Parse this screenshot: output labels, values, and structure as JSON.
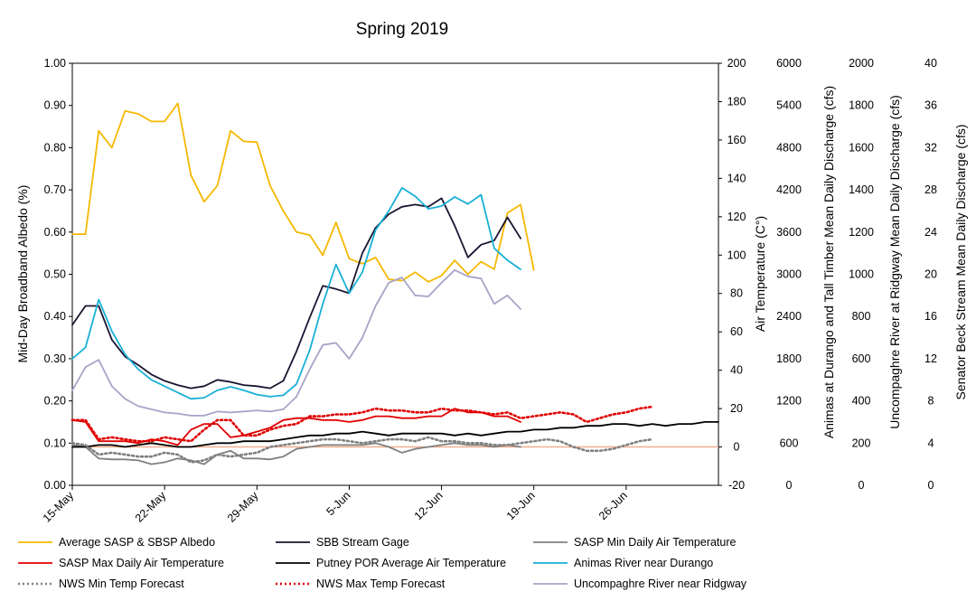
{
  "chart_data": {
    "type": "line",
    "title": "Spring 2019",
    "x_axis": {
      "tick_labels": [
        "15-May",
        "22-May",
        "29-May",
        "5-Jun",
        "12-Jun",
        "19-Jun",
        "26-Jun"
      ],
      "tick_days": [
        0,
        7,
        14,
        21,
        28,
        35,
        42
      ],
      "range_days": [
        0,
        49
      ]
    },
    "axes": {
      "albedo": {
        "label": "Mid-Day Broadband Albedo (%)",
        "min": 0,
        "max": 1,
        "ticks": [
          "0.00",
          "0.10",
          "0.20",
          "0.30",
          "0.40",
          "0.50",
          "0.60",
          "0.70",
          "0.80",
          "0.90",
          "1.00"
        ]
      },
      "temp": {
        "label": "Air Temperature (C°)",
        "min": -20,
        "max": 200,
        "ticks": [
          "-20",
          "0",
          "20",
          "40",
          "60",
          "80",
          "100",
          "120",
          "140",
          "160",
          "180",
          "200"
        ]
      },
      "animas": {
        "label": "Animas at Durango and Tall Timber Mean Daily Discharge (cfs)",
        "min": 0,
        "max": 6000,
        "ticks": [
          "0",
          "600",
          "1200",
          "1800",
          "2400",
          "3000",
          "3600",
          "4200",
          "4800",
          "5400",
          "6000"
        ]
      },
      "uncomp": {
        "label": "Uncompaghre River at Ridgway Mean Daily Discharge (cfs)",
        "min": 0,
        "max": 2000,
        "ticks": [
          "0",
          "200",
          "400",
          "600",
          "800",
          "1000",
          "1200",
          "1400",
          "1600",
          "1800",
          "2000"
        ]
      },
      "senator": {
        "label": "Senator Beck Stream Mean Daily Discharge (cfs)",
        "min": 0,
        "max": 40,
        "ticks": [
          "0",
          "4",
          "8",
          "12",
          "16",
          "20",
          "24",
          "28",
          "32",
          "36",
          "40"
        ]
      }
    },
    "series": [
      {
        "name": "Average SASP & SBSP Albedo",
        "axis": "albedo",
        "color": "#f5b800",
        "dash": "",
        "width": 1.8,
        "x": [
          0,
          1,
          2,
          3,
          4,
          5,
          6,
          7,
          8,
          9,
          10,
          11,
          12,
          13,
          14,
          15,
          16,
          17,
          18,
          19,
          20,
          21,
          22,
          23,
          24,
          25,
          26,
          27,
          28,
          29,
          30,
          31,
          32,
          33,
          34,
          35
        ],
        "y": [
          0.595,
          0.595,
          0.84,
          0.8,
          0.887,
          0.88,
          0.862,
          0.862,
          0.905,
          0.735,
          0.672,
          0.71,
          0.84,
          0.815,
          0.813,
          0.71,
          0.65,
          0.6,
          0.593,
          0.545,
          0.623,
          0.537,
          0.525,
          0.54,
          0.488,
          0.485,
          0.505,
          0.482,
          0.497,
          0.533,
          0.5,
          0.53,
          0.512,
          0.645,
          0.665,
          0.51
        ]
      },
      {
        "name": "SBB Stream Gage",
        "axis": "senator",
        "color": "#1a1530",
        "dash": "",
        "width": 1.8,
        "x": [
          0,
          1,
          2,
          3,
          4,
          5,
          6,
          7,
          8,
          9,
          10,
          11,
          12,
          13,
          14,
          15,
          16,
          17,
          18,
          19,
          20,
          21,
          22,
          23,
          24,
          25,
          26,
          27,
          28,
          29,
          30,
          31,
          32,
          33,
          34
        ],
        "y": [
          15.2,
          17,
          17,
          13.8,
          12.2,
          11.4,
          10.5,
          9.9,
          9.5,
          9.2,
          9.4,
          10,
          9.8,
          9.5,
          9.4,
          9.2,
          9.9,
          12.7,
          15.9,
          18.9,
          18.6,
          18.2,
          22,
          24.4,
          25.7,
          26.4,
          26.6,
          26.4,
          27.2,
          24.6,
          21.6,
          22.8,
          23.2,
          25.4,
          23.4
        ]
      },
      {
        "name": "SASP Min Daily Air Temperature",
        "axis": "temp",
        "color": "#808080",
        "dash": "",
        "width": 1.8,
        "x": [
          0,
          1,
          2,
          3,
          4,
          5,
          6,
          7,
          8,
          9,
          10,
          11,
          12,
          13,
          14,
          15,
          16,
          17,
          18,
          19,
          20,
          21,
          22,
          23,
          24,
          25,
          26,
          27,
          28,
          29,
          30,
          31,
          32,
          33,
          34
        ],
        "y": [
          1,
          0,
          -6,
          -6.5,
          -6.5,
          -7,
          -9,
          -8,
          -6,
          -7,
          -9,
          -4,
          -2,
          -6,
          -6,
          -6.5,
          -5,
          -1,
          0,
          1,
          1,
          1,
          1,
          2,
          0,
          -3,
          -1,
          0,
          1,
          2,
          1,
          1,
          0,
          1,
          0
        ]
      },
      {
        "name": "SASP Max Daily Air Temperature",
        "axis": "temp",
        "color": "#e00000",
        "dash": "",
        "width": 1.8,
        "x": [
          0,
          1,
          2,
          3,
          4,
          5,
          6,
          7,
          8,
          9,
          10,
          11,
          12,
          13,
          14,
          15,
          16,
          17,
          18,
          19,
          20,
          21,
          22,
          23,
          24,
          25,
          26,
          27,
          28,
          29,
          30,
          31,
          32,
          33,
          34
        ],
        "y": [
          14,
          13,
          3,
          3,
          3,
          2,
          4,
          3,
          1,
          9,
          12,
          12,
          5,
          6,
          8,
          10,
          14,
          15,
          15,
          14,
          14,
          13,
          14,
          16,
          16,
          15,
          15,
          16,
          16,
          20,
          18,
          18,
          16,
          16,
          13
        ]
      },
      {
        "name": "Putney POR Average Air Temperature",
        "axis": "temp",
        "color": "#000000",
        "dash": "",
        "width": 1.8,
        "x": [
          0,
          1,
          2,
          3,
          4,
          5,
          6,
          7,
          8,
          9,
          10,
          11,
          12,
          13,
          14,
          15,
          16,
          17,
          18,
          19,
          20,
          21,
          22,
          23,
          24,
          25,
          26,
          27,
          28,
          29,
          30,
          31,
          32,
          33,
          34,
          35,
          36,
          37,
          38,
          39,
          40,
          41,
          42,
          43,
          44,
          45,
          46,
          47,
          48,
          49
        ],
        "y": [
          0,
          0,
          1,
          1,
          0,
          1,
          2,
          1,
          0,
          0,
          1,
          2,
          2,
          3,
          3,
          3,
          4,
          5,
          6,
          6,
          7,
          7,
          8,
          7,
          6,
          7,
          7,
          7,
          7,
          6,
          7,
          6,
          7,
          8,
          8,
          9,
          9,
          10,
          10,
          11,
          11,
          12,
          12,
          11,
          12,
          11,
          12,
          12,
          13,
          13
        ]
      },
      {
        "name": "Animas River near Durango",
        "axis": "animas",
        "color": "#19b0d6",
        "dash": "",
        "width": 1.8,
        "x": [
          0,
          1,
          2,
          3,
          4,
          5,
          6,
          7,
          8,
          9,
          10,
          11,
          12,
          13,
          14,
          15,
          16,
          17,
          18,
          19,
          20,
          21,
          22,
          23,
          24,
          25,
          26,
          27,
          28,
          29,
          30,
          31,
          32,
          33,
          34
        ],
        "y": [
          1800,
          1960,
          2640,
          2190,
          1860,
          1650,
          1500,
          1410,
          1320,
          1230,
          1245,
          1350,
          1400,
          1350,
          1290,
          1260,
          1280,
          1440,
          1920,
          2580,
          3140,
          2730,
          3030,
          3630,
          3900,
          4230,
          4110,
          3930,
          3970,
          4100,
          4000,
          4130,
          3370,
          3200,
          3070
        ]
      },
      {
        "name": "NWS Min Temp Forecast",
        "axis": "temp",
        "color": "#808080",
        "dash": "2 3",
        "width": 2.6,
        "x": [
          0,
          1,
          2,
          3,
          4,
          5,
          6,
          7,
          8,
          9,
          10,
          11,
          12,
          13,
          14,
          15,
          16,
          17,
          18,
          19,
          20,
          21,
          22,
          23,
          24,
          25,
          26,
          27,
          28,
          29,
          30,
          31,
          32,
          33,
          34,
          35,
          36,
          37,
          38,
          39,
          40,
          41,
          42,
          43,
          44
        ],
        "y": [
          2,
          1,
          -4,
          -3,
          -4,
          -5,
          -5,
          -3,
          -4,
          -8,
          -7,
          -4,
          -5,
          -4,
          -3,
          0,
          1,
          2,
          3,
          4,
          4,
          3,
          2,
          3,
          4,
          4,
          3,
          5,
          3,
          3,
          2,
          2,
          1,
          1,
          2,
          3,
          4,
          3,
          0,
          -2,
          -2,
          -1,
          1,
          3,
          4
        ]
      },
      {
        "name": "NWS Max Temp Forecast",
        "axis": "temp",
        "color": "#e00000",
        "dash": "2 3",
        "width": 2.6,
        "x": [
          0,
          1,
          2,
          3,
          4,
          5,
          6,
          7,
          8,
          9,
          10,
          11,
          12,
          13,
          14,
          15,
          16,
          17,
          18,
          19,
          20,
          21,
          22,
          23,
          24,
          25,
          26,
          27,
          28,
          29,
          30,
          31,
          32,
          33,
          34,
          35,
          36,
          37,
          38,
          39,
          40,
          41,
          42,
          43,
          44
        ],
        "y": [
          14,
          14,
          4,
          5,
          4,
          3,
          3,
          5,
          4,
          3,
          9,
          14,
          14,
          6,
          6,
          9,
          11,
          12,
          16,
          16,
          17,
          17,
          18,
          20,
          19,
          19,
          18,
          18,
          20,
          19,
          19,
          18,
          17,
          18,
          15,
          16,
          17,
          18,
          17,
          13,
          15,
          17,
          18,
          20,
          21
        ]
      },
      {
        "name": "Uncompahgre River near Ridgway",
        "axis": "uncomp",
        "color": "#a8a4c8",
        "dash": "",
        "width": 1.8,
        "x": [
          0,
          1,
          2,
          3,
          4,
          5,
          6,
          7,
          8,
          9,
          10,
          11,
          12,
          13,
          14,
          15,
          16,
          17,
          18,
          19,
          20,
          21,
          22,
          23,
          24,
          25,
          26,
          27,
          28,
          29,
          30,
          31,
          32,
          33,
          34
        ],
        "y": [
          450,
          560,
          595,
          470,
          410,
          375,
          360,
          345,
          340,
          330,
          330,
          350,
          345,
          350,
          355,
          350,
          360,
          420,
          550,
          665,
          675,
          600,
          700,
          850,
          960,
          985,
          900,
          895,
          960,
          1020,
          990,
          980,
          860,
          900,
          835
        ]
      }
    ],
    "legend": [
      [
        "Average SASP & SBSP Albedo",
        "SBB Stream Gage",
        "SASP Min Daily Air Temperature"
      ],
      [
        "SASP Max Daily Air Temperature",
        "Putney POR Average Air Temperature",
        "Animas River near Durango"
      ],
      [
        "NWS Min Temp Forecast",
        "NWS Max Temp Forecast",
        "Uncompaghre River near Ridgway"
      ]
    ],
    "reference_line": {
      "axis": "temp",
      "value": 0,
      "color": "#f0b090"
    },
    "legend_position": "bottom",
    "grid": false
  }
}
